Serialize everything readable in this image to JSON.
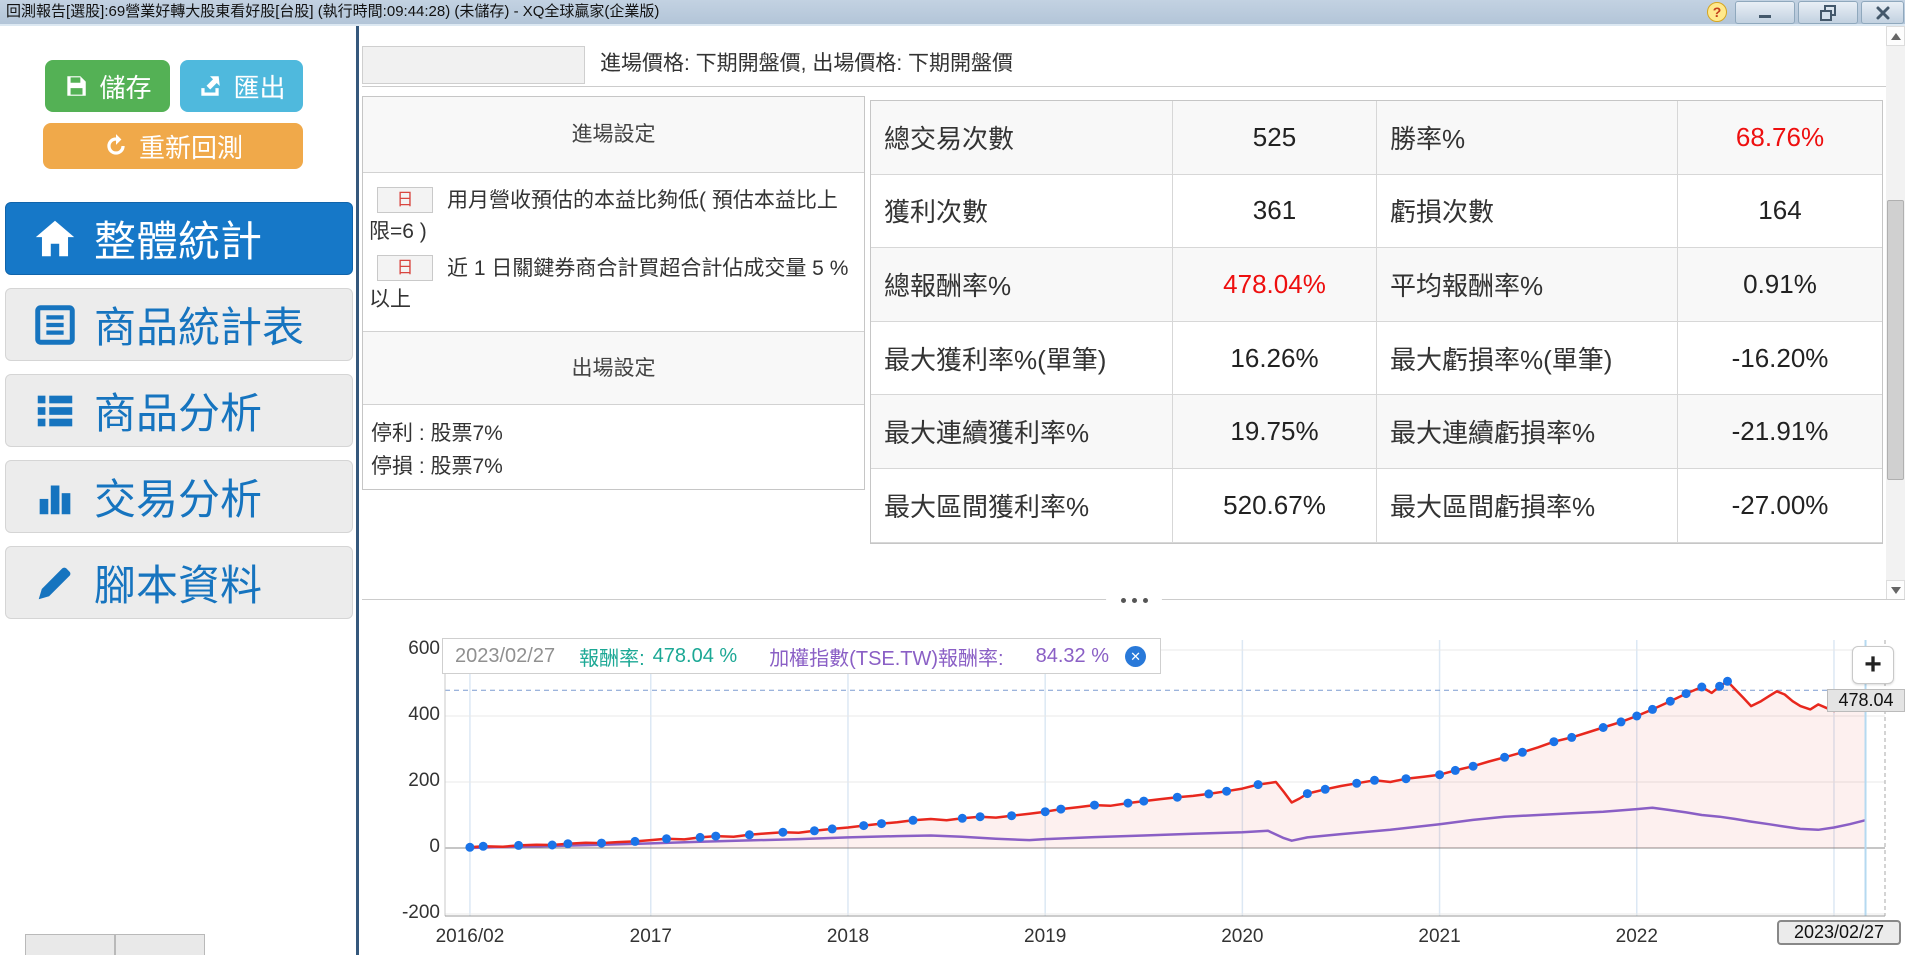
{
  "window": {
    "title": "回測報告[選股]:69營業好轉大股東看好股[台股] (執行時間:09:44:28) (未儲存) - XQ全球贏家(企業版)",
    "help": "?"
  },
  "sidebar": {
    "save_label": "儲存",
    "export_label": "匯出",
    "rerun_label": "重新回測",
    "items": [
      {
        "label": "整體統計",
        "icon": "home-icon",
        "active": true
      },
      {
        "label": "商品統計表",
        "icon": "table-icon",
        "active": false
      },
      {
        "label": "商品分析",
        "icon": "list-icon",
        "active": false
      },
      {
        "label": "交易分析",
        "icon": "bar-chart-icon",
        "active": false
      },
      {
        "label": "腳本資料",
        "icon": "pencil-icon",
        "active": false
      }
    ]
  },
  "settings": {
    "price_note": "進場價格: 下期開盤價, 出場價格: 下期開盤價",
    "entry_header": "進場設定",
    "entry_conditions": [
      {
        "badge": "日",
        "text": "用月營收預估的本益比夠低( 預估本益比上限=6 )"
      },
      {
        "badge": "日",
        "text": "近 1 日關鍵券商合計買超合計佔成交量 5 %以上"
      }
    ],
    "exit_header": "出場設定",
    "exit_lines": [
      "停利 : 股票7%",
      "停損 : 股票7%"
    ]
  },
  "stats": {
    "rows": [
      {
        "label1": "總交易次數",
        "value1": "525",
        "red1": false,
        "label2": "勝率%",
        "value2": "68.76%",
        "red2": true
      },
      {
        "label1": "獲利次數",
        "value1": "361",
        "red1": false,
        "label2": "虧損次數",
        "value2": "164",
        "red2": false
      },
      {
        "label1": "總報酬率%",
        "value1": "478.04%",
        "red1": true,
        "label2": "平均報酬率%",
        "value2": "0.91%",
        "red2": false
      },
      {
        "label1": "最大獲利率%(單筆)",
        "value1": "16.26%",
        "red1": false,
        "label2": "最大虧損率%(單筆)",
        "value2": "-16.20%",
        "red2": false
      },
      {
        "label1": "最大連續獲利率%",
        "value1": "19.75%",
        "red1": false,
        "label2": "最大連續虧損率%",
        "value2": "-21.91%",
        "red2": false
      },
      {
        "label1": "最大區間獲利率%",
        "value1": "520.67%",
        "red1": false,
        "label2": "最大區間虧損率%",
        "value2": "-27.00%",
        "red2": false
      }
    ]
  },
  "chart_data": {
    "type": "line",
    "legend": {
      "date": "2023/02/27",
      "series1_label": "報酬率:",
      "series1_value": "478.04 %",
      "series2_label": "加權指數(TSE.TW)報酬率:",
      "series2_value": "84.32 %"
    },
    "ylim": [
      -200,
      600
    ],
    "y_ticks": [
      600,
      400,
      200,
      0,
      -200
    ],
    "x_ticks": [
      {
        "label": "2016/02",
        "t": 2016.083
      },
      {
        "label": "2017",
        "t": 2017
      },
      {
        "label": "2018",
        "t": 2018
      },
      {
        "label": "2019",
        "t": 2019
      },
      {
        "label": "2020",
        "t": 2020
      },
      {
        "label": "2021",
        "t": 2021
      },
      {
        "label": "2022",
        "t": 2022
      },
      {
        "label": "2023",
        "t": 2023
      }
    ],
    "grid": true,
    "legend_position": "top-left",
    "end_value_label": "478.04",
    "end_date_label": "2023/02/27",
    "zoom_button": "+",
    "end_marker": {
      "t": 2023.16,
      "value": 478.04
    },
    "colors": {
      "strategy": "#e8281e",
      "index": "#8a5fc5",
      "markers": "#1a73e8",
      "area": "rgba(232,40,30,0.07)",
      "teal": "#1ca895",
      "purple": "#8a5fc5",
      "stat_red": "#ee0f0f"
    },
    "series": [
      {
        "name": "報酬率",
        "final": 478.04,
        "points": [
          [
            2016.083,
            2,
            1
          ],
          [
            2016.15,
            5,
            1
          ],
          [
            2016.25,
            4,
            0
          ],
          [
            2016.33,
            8,
            1
          ],
          [
            2016.42,
            10,
            0
          ],
          [
            2016.5,
            9,
            1
          ],
          [
            2016.58,
            13,
            1
          ],
          [
            2016.67,
            16,
            0
          ],
          [
            2016.75,
            15,
            1
          ],
          [
            2016.83,
            18,
            0
          ],
          [
            2016.92,
            20,
            1
          ],
          [
            2017.0,
            24,
            0
          ],
          [
            2017.08,
            28,
            1
          ],
          [
            2017.17,
            26,
            0
          ],
          [
            2017.25,
            32,
            1
          ],
          [
            2017.33,
            36,
            1
          ],
          [
            2017.42,
            34,
            0
          ],
          [
            2017.5,
            40,
            1
          ],
          [
            2017.58,
            44,
            0
          ],
          [
            2017.67,
            48,
            1
          ],
          [
            2017.75,
            46,
            0
          ],
          [
            2017.83,
            52,
            1
          ],
          [
            2017.92,
            58,
            1
          ],
          [
            2018.0,
            62,
            0
          ],
          [
            2018.08,
            68,
            1
          ],
          [
            2018.17,
            74,
            1
          ],
          [
            2018.25,
            78,
            0
          ],
          [
            2018.33,
            84,
            1
          ],
          [
            2018.42,
            88,
            0
          ],
          [
            2018.5,
            84,
            0
          ],
          [
            2018.58,
            90,
            1
          ],
          [
            2018.67,
            95,
            1
          ],
          [
            2018.75,
            92,
            0
          ],
          [
            2018.83,
            98,
            1
          ],
          [
            2018.92,
            104,
            0
          ],
          [
            2019.0,
            110,
            1
          ],
          [
            2019.08,
            118,
            1
          ],
          [
            2019.17,
            124,
            0
          ],
          [
            2019.25,
            130,
            1
          ],
          [
            2019.33,
            128,
            0
          ],
          [
            2019.42,
            136,
            1
          ],
          [
            2019.5,
            142,
            1
          ],
          [
            2019.58,
            148,
            0
          ],
          [
            2019.67,
            154,
            1
          ],
          [
            2019.75,
            158,
            0
          ],
          [
            2019.83,
            164,
            1
          ],
          [
            2019.92,
            172,
            1
          ],
          [
            2020.0,
            180,
            0
          ],
          [
            2020.08,
            192,
            1
          ],
          [
            2020.17,
            200,
            0
          ],
          [
            2020.21,
            170,
            0
          ],
          [
            2020.25,
            138,
            0
          ],
          [
            2020.29,
            150,
            0
          ],
          [
            2020.33,
            165,
            1
          ],
          [
            2020.42,
            178,
            1
          ],
          [
            2020.5,
            188,
            0
          ],
          [
            2020.58,
            196,
            1
          ],
          [
            2020.67,
            205,
            1
          ],
          [
            2020.75,
            200,
            0
          ],
          [
            2020.83,
            210,
            1
          ],
          [
            2020.92,
            216,
            0
          ],
          [
            2021.0,
            222,
            1
          ],
          [
            2021.08,
            235,
            1
          ],
          [
            2021.17,
            248,
            1
          ],
          [
            2021.25,
            262,
            0
          ],
          [
            2021.33,
            275,
            1
          ],
          [
            2021.42,
            290,
            1
          ],
          [
            2021.5,
            305,
            0
          ],
          [
            2021.58,
            322,
            1
          ],
          [
            2021.67,
            335,
            1
          ],
          [
            2021.75,
            350,
            0
          ],
          [
            2021.83,
            365,
            1
          ],
          [
            2021.92,
            382,
            1
          ],
          [
            2022.0,
            400,
            1
          ],
          [
            2022.08,
            420,
            1
          ],
          [
            2022.17,
            445,
            1
          ],
          [
            2022.25,
            468,
            1
          ],
          [
            2022.33,
            488,
            1
          ],
          [
            2022.38,
            470,
            0
          ],
          [
            2022.42,
            490,
            1
          ],
          [
            2022.46,
            505,
            1
          ],
          [
            2022.5,
            480,
            0
          ],
          [
            2022.54,
            455,
            0
          ],
          [
            2022.58,
            430,
            0
          ],
          [
            2022.63,
            445,
            0
          ],
          [
            2022.67,
            460,
            0
          ],
          [
            2022.71,
            475,
            0
          ],
          [
            2022.75,
            465,
            0
          ],
          [
            2022.79,
            445,
            0
          ],
          [
            2022.83,
            430,
            0
          ],
          [
            2022.88,
            420,
            0
          ],
          [
            2022.92,
            435,
            0
          ],
          [
            2022.96,
            425,
            0
          ],
          [
            2023.0,
            415,
            0
          ],
          [
            2023.04,
            435,
            0
          ],
          [
            2023.08,
            455,
            0
          ],
          [
            2023.12,
            465,
            0
          ],
          [
            2023.16,
            478.04,
            0
          ]
        ]
      },
      {
        "name": "加權指數(TSE.TW)報酬率",
        "final": 84.32,
        "points": [
          [
            2016.083,
            0,
            0
          ],
          [
            2016.25,
            3,
            0
          ],
          [
            2016.5,
            6,
            0
          ],
          [
            2016.75,
            10,
            0
          ],
          [
            2017.0,
            14,
            0
          ],
          [
            2017.25,
            19,
            0
          ],
          [
            2017.5,
            23,
            0
          ],
          [
            2017.75,
            27,
            0
          ],
          [
            2018.0,
            32,
            0
          ],
          [
            2018.25,
            36,
            0
          ],
          [
            2018.42,
            38,
            0
          ],
          [
            2018.58,
            34,
            0
          ],
          [
            2018.75,
            28,
            0
          ],
          [
            2018.92,
            24,
            0
          ],
          [
            2019.0,
            27,
            0
          ],
          [
            2019.25,
            33,
            0
          ],
          [
            2019.5,
            38,
            0
          ],
          [
            2019.75,
            43,
            0
          ],
          [
            2020.0,
            48,
            0
          ],
          [
            2020.13,
            52,
            0
          ],
          [
            2020.21,
            30,
            0
          ],
          [
            2020.25,
            22,
            0
          ],
          [
            2020.33,
            32,
            0
          ],
          [
            2020.5,
            42,
            0
          ],
          [
            2020.75,
            55,
            0
          ],
          [
            2021.0,
            72,
            0
          ],
          [
            2021.17,
            85,
            0
          ],
          [
            2021.33,
            95,
            0
          ],
          [
            2021.5,
            100,
            0
          ],
          [
            2021.67,
            105,
            0
          ],
          [
            2021.83,
            110,
            0
          ],
          [
            2022.0,
            118,
            0
          ],
          [
            2022.08,
            122,
            0
          ],
          [
            2022.17,
            115,
            0
          ],
          [
            2022.25,
            108,
            0
          ],
          [
            2022.33,
            100,
            0
          ],
          [
            2022.42,
            95,
            0
          ],
          [
            2022.5,
            88,
            0
          ],
          [
            2022.58,
            80,
            0
          ],
          [
            2022.67,
            72,
            0
          ],
          [
            2022.75,
            65,
            0
          ],
          [
            2022.83,
            58,
            0
          ],
          [
            2022.92,
            55,
            0
          ],
          [
            2023.0,
            62,
            0
          ],
          [
            2023.08,
            72,
            0
          ],
          [
            2023.16,
            84.32,
            0
          ]
        ]
      }
    ]
  }
}
